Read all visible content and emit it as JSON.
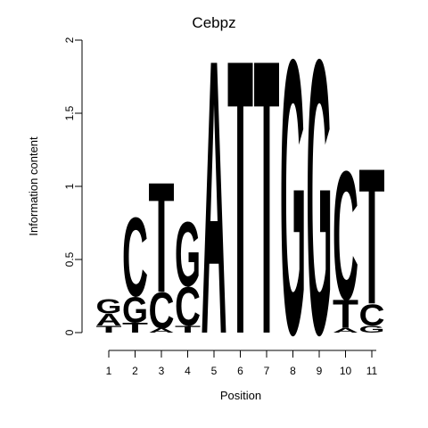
{
  "chart_data": {
    "type": "sequence-logo",
    "title": "Cebpz",
    "xlabel": "Position",
    "ylabel": "Information content",
    "ylim": [
      0,
      2
    ],
    "yticks": [
      "0",
      "0.5",
      "1",
      "1.5",
      "2"
    ],
    "positions": [
      "1",
      "2",
      "3",
      "4",
      "5",
      "6",
      "7",
      "8",
      "9",
      "10",
      "11"
    ],
    "colors": {
      "A": "#00ee00",
      "C": "#0000ee",
      "G": "#ffa500",
      "T": "#ff0000"
    },
    "stacks": [
      [
        {
          "l": "T",
          "h": 0.05
        },
        {
          "l": "A",
          "h": 0.08
        },
        {
          "l": "G",
          "h": 0.1
        }
      ],
      [
        {
          "l": "T",
          "h": 0.07
        },
        {
          "l": "G",
          "h": 0.18
        },
        {
          "l": "C",
          "h": 0.55
        }
      ],
      [
        {
          "l": "A",
          "h": 0.03
        },
        {
          "l": "C",
          "h": 0.25
        },
        {
          "l": "T",
          "h": 0.77
        }
      ],
      [
        {
          "l": "T",
          "h": 0.05
        },
        {
          "l": "C",
          "h": 0.27
        },
        {
          "l": "G",
          "h": 0.45
        }
      ],
      [
        {
          "l": "A",
          "h": 1.92
        }
      ],
      [
        {
          "l": "T",
          "h": 1.92
        }
      ],
      [
        {
          "l": "T",
          "h": 1.92
        }
      ],
      [
        {
          "l": "G",
          "h": 1.92
        }
      ],
      [
        {
          "l": "G",
          "h": 1.92
        }
      ],
      [
        {
          "l": "A",
          "h": 0.03
        },
        {
          "l": "T",
          "h": 0.2
        },
        {
          "l": "C",
          "h": 0.9
        }
      ],
      [
        {
          "l": "G",
          "h": 0.05
        },
        {
          "l": "C",
          "h": 0.15
        },
        {
          "l": "T",
          "h": 0.95
        }
      ]
    ]
  }
}
